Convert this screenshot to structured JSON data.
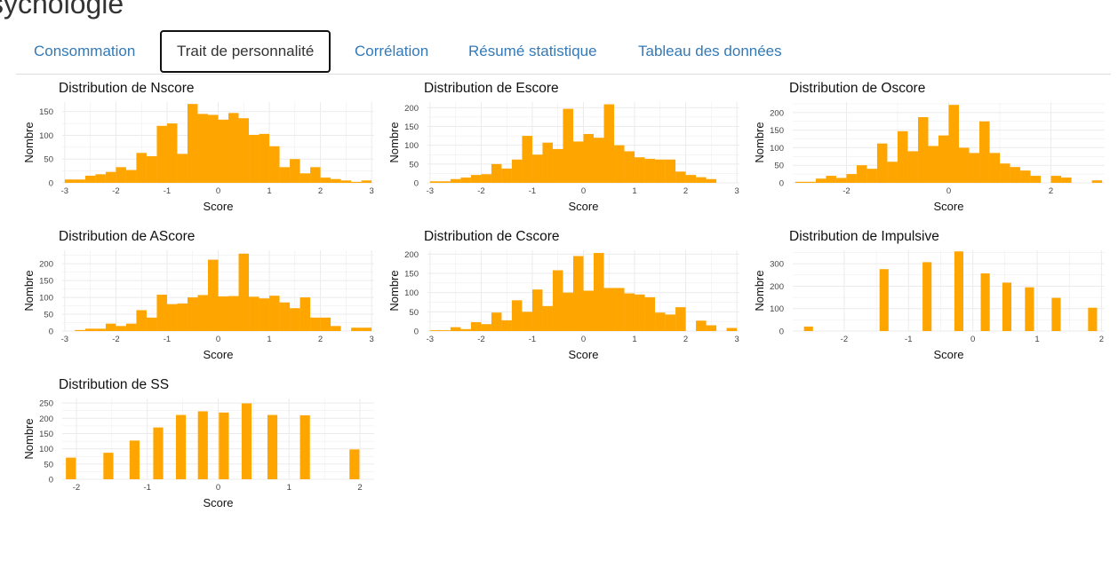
{
  "page": {
    "title": "sychologie"
  },
  "tabs": [
    {
      "label": "Consommation",
      "active": false
    },
    {
      "label": "Trait de personnalité",
      "active": true
    },
    {
      "label": "Corrélation",
      "active": false
    },
    {
      "label": "Résumé statistique",
      "active": false
    },
    {
      "label": "Tableau des données",
      "active": false
    }
  ],
  "colors": {
    "bar": "#FFA500",
    "grid": "#ebebeb",
    "link": "#337ab7"
  },
  "chart_data": [
    {
      "type": "bar",
      "title": "Distribution de Nscore",
      "xlabel": "Score",
      "ylabel": "Nombre",
      "x_ticks": [
        -3,
        -2,
        -1,
        0,
        1,
        2,
        3
      ],
      "y_ticks": [
        0,
        50,
        100,
        150
      ],
      "xlim": [
        -3.05,
        3.05
      ],
      "ylim": [
        0,
        170
      ],
      "bin_width": 0.2,
      "bin_start": -2.9,
      "values": [
        7,
        7,
        15,
        18,
        23,
        33,
        27,
        63,
        56,
        120,
        125,
        61,
        166,
        145,
        143,
        133,
        147,
        136,
        101,
        103,
        77,
        33,
        50,
        20,
        33,
        11,
        8,
        5,
        2,
        5
      ]
    },
    {
      "type": "bar",
      "title": "Distribution de Escore",
      "xlabel": "Score",
      "ylabel": "Nombre",
      "x_ticks": [
        -3,
        -2,
        -1,
        0,
        1,
        2,
        3
      ],
      "y_ticks": [
        0,
        50,
        100,
        150,
        200
      ],
      "xlim": [
        -3.05,
        3.05
      ],
      "ylim": [
        0,
        215
      ],
      "bin_width": 0.2,
      "bin_start": -2.9,
      "values": [
        4,
        4,
        10,
        14,
        21,
        23,
        50,
        38,
        62,
        125,
        75,
        107,
        90,
        197,
        110,
        130,
        120,
        209,
        100,
        84,
        68,
        64,
        62,
        62,
        30,
        21,
        15,
        10,
        0,
        0
      ]
    },
    {
      "type": "bar",
      "title": "Distribution de Oscore",
      "xlabel": "Score",
      "ylabel": "Nombre",
      "x_ticks": [
        -2,
        0,
        2
      ],
      "y_ticks": [
        0,
        50,
        100,
        150,
        200
      ],
      "xlim": [
        -3.05,
        3.05
      ],
      "ylim": [
        0,
        230
      ],
      "bin_width": 0.2,
      "bin_start": -2.9,
      "values": [
        3,
        3,
        12,
        20,
        14,
        25,
        50,
        40,
        112,
        60,
        147,
        90,
        187,
        105,
        135,
        222,
        100,
        85,
        175,
        85,
        55,
        45,
        35,
        20,
        0,
        20,
        15,
        0,
        0,
        7
      ]
    },
    {
      "type": "bar",
      "title": "Distribution de AScore",
      "xlabel": "Score",
      "ylabel": "Nombre",
      "x_ticks": [
        -3,
        -2,
        -1,
        0,
        1,
        2,
        3
      ],
      "y_ticks": [
        0,
        50,
        100,
        150,
        200
      ],
      "xlim": [
        -3.05,
        3.05
      ],
      "ylim": [
        0,
        240
      ],
      "bin_width": 0.2,
      "bin_start": -2.9,
      "values": [
        0,
        3,
        7,
        7,
        22,
        15,
        22,
        62,
        40,
        108,
        80,
        82,
        100,
        107,
        212,
        103,
        104,
        230,
        102,
        97,
        105,
        85,
        68,
        100,
        40,
        40,
        15,
        0,
        10,
        10
      ]
    },
    {
      "type": "bar",
      "title": "Distribution de Cscore",
      "xlabel": "Score",
      "ylabel": "Nombre",
      "x_ticks": [
        -3,
        -2,
        -1,
        0,
        1,
        2,
        3
      ],
      "y_ticks": [
        0,
        50,
        100,
        150,
        200
      ],
      "xlim": [
        -3.05,
        3.05
      ],
      "ylim": [
        0,
        210
      ],
      "bin_width": 0.2,
      "bin_start": -2.9,
      "values": [
        2,
        2,
        10,
        5,
        23,
        18,
        48,
        28,
        80,
        50,
        108,
        65,
        158,
        100,
        195,
        105,
        203,
        112,
        112,
        98,
        95,
        88,
        48,
        43,
        62,
        0,
        27,
        15,
        0,
        8
      ]
    },
    {
      "type": "bar",
      "title": "Distribution de Impulsive",
      "xlabel": "Score",
      "ylabel": "Nombre",
      "x_ticks": [
        -2,
        -1,
        0,
        1,
        2
      ],
      "y_ticks": [
        0,
        100,
        200,
        300
      ],
      "xlim": [
        -2.8,
        2.05
      ],
      "ylim": [
        0,
        360
      ],
      "bin_width": 0.14,
      "x": [
        -2.555,
        -1.38,
        -0.711,
        -0.217,
        0.193,
        0.53,
        0.881,
        1.296,
        1.862
      ],
      "values": [
        20,
        276,
        307,
        355,
        257,
        216,
        195,
        148,
        104
      ]
    },
    {
      "type": "bar",
      "title": "Distribution de SS",
      "xlabel": "Score",
      "ylabel": "Nombre",
      "x_ticks": [
        -2,
        -1,
        0,
        1,
        2
      ],
      "y_ticks": [
        0,
        50,
        100,
        150,
        200,
        250
      ],
      "xlim": [
        -2.2,
        2.2
      ],
      "ylim": [
        0,
        265
      ],
      "bin_width": 0.14,
      "x": [
        -2.078,
        -1.549,
        -1.18,
        -0.846,
        -0.526,
        -0.216,
        0.08,
        0.401,
        0.765,
        1.224,
        1.922
      ],
      "values": [
        71,
        87,
        127,
        170,
        211,
        223,
        219,
        249,
        211,
        210,
        98
      ]
    }
  ]
}
